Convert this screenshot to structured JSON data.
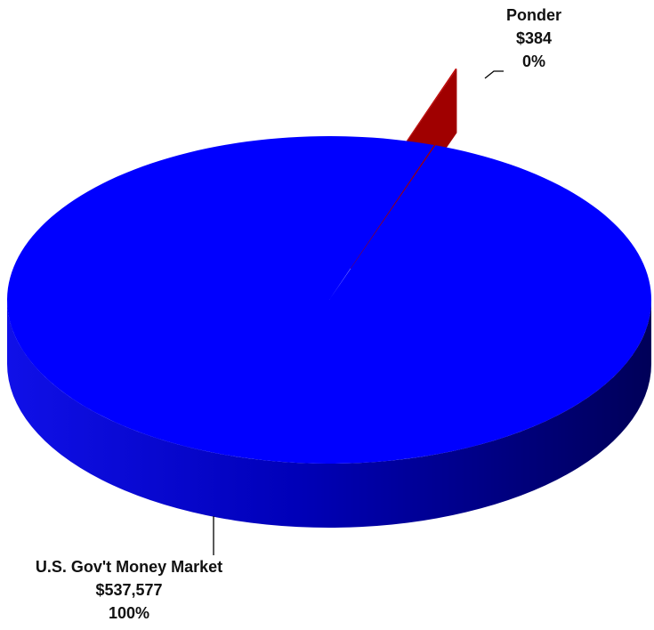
{
  "chart_data": {
    "type": "pie3d",
    "categories": [
      "Ponder",
      "U.S. Gov't Money Market"
    ],
    "values": [
      384,
      537577
    ],
    "value_labels": [
      "$384",
      "$537,577"
    ],
    "percent_labels": [
      "0%",
      "100%"
    ],
    "colors": [
      "#c00000",
      "#0000ff"
    ],
    "exploded": [
      true,
      false
    ]
  }
}
